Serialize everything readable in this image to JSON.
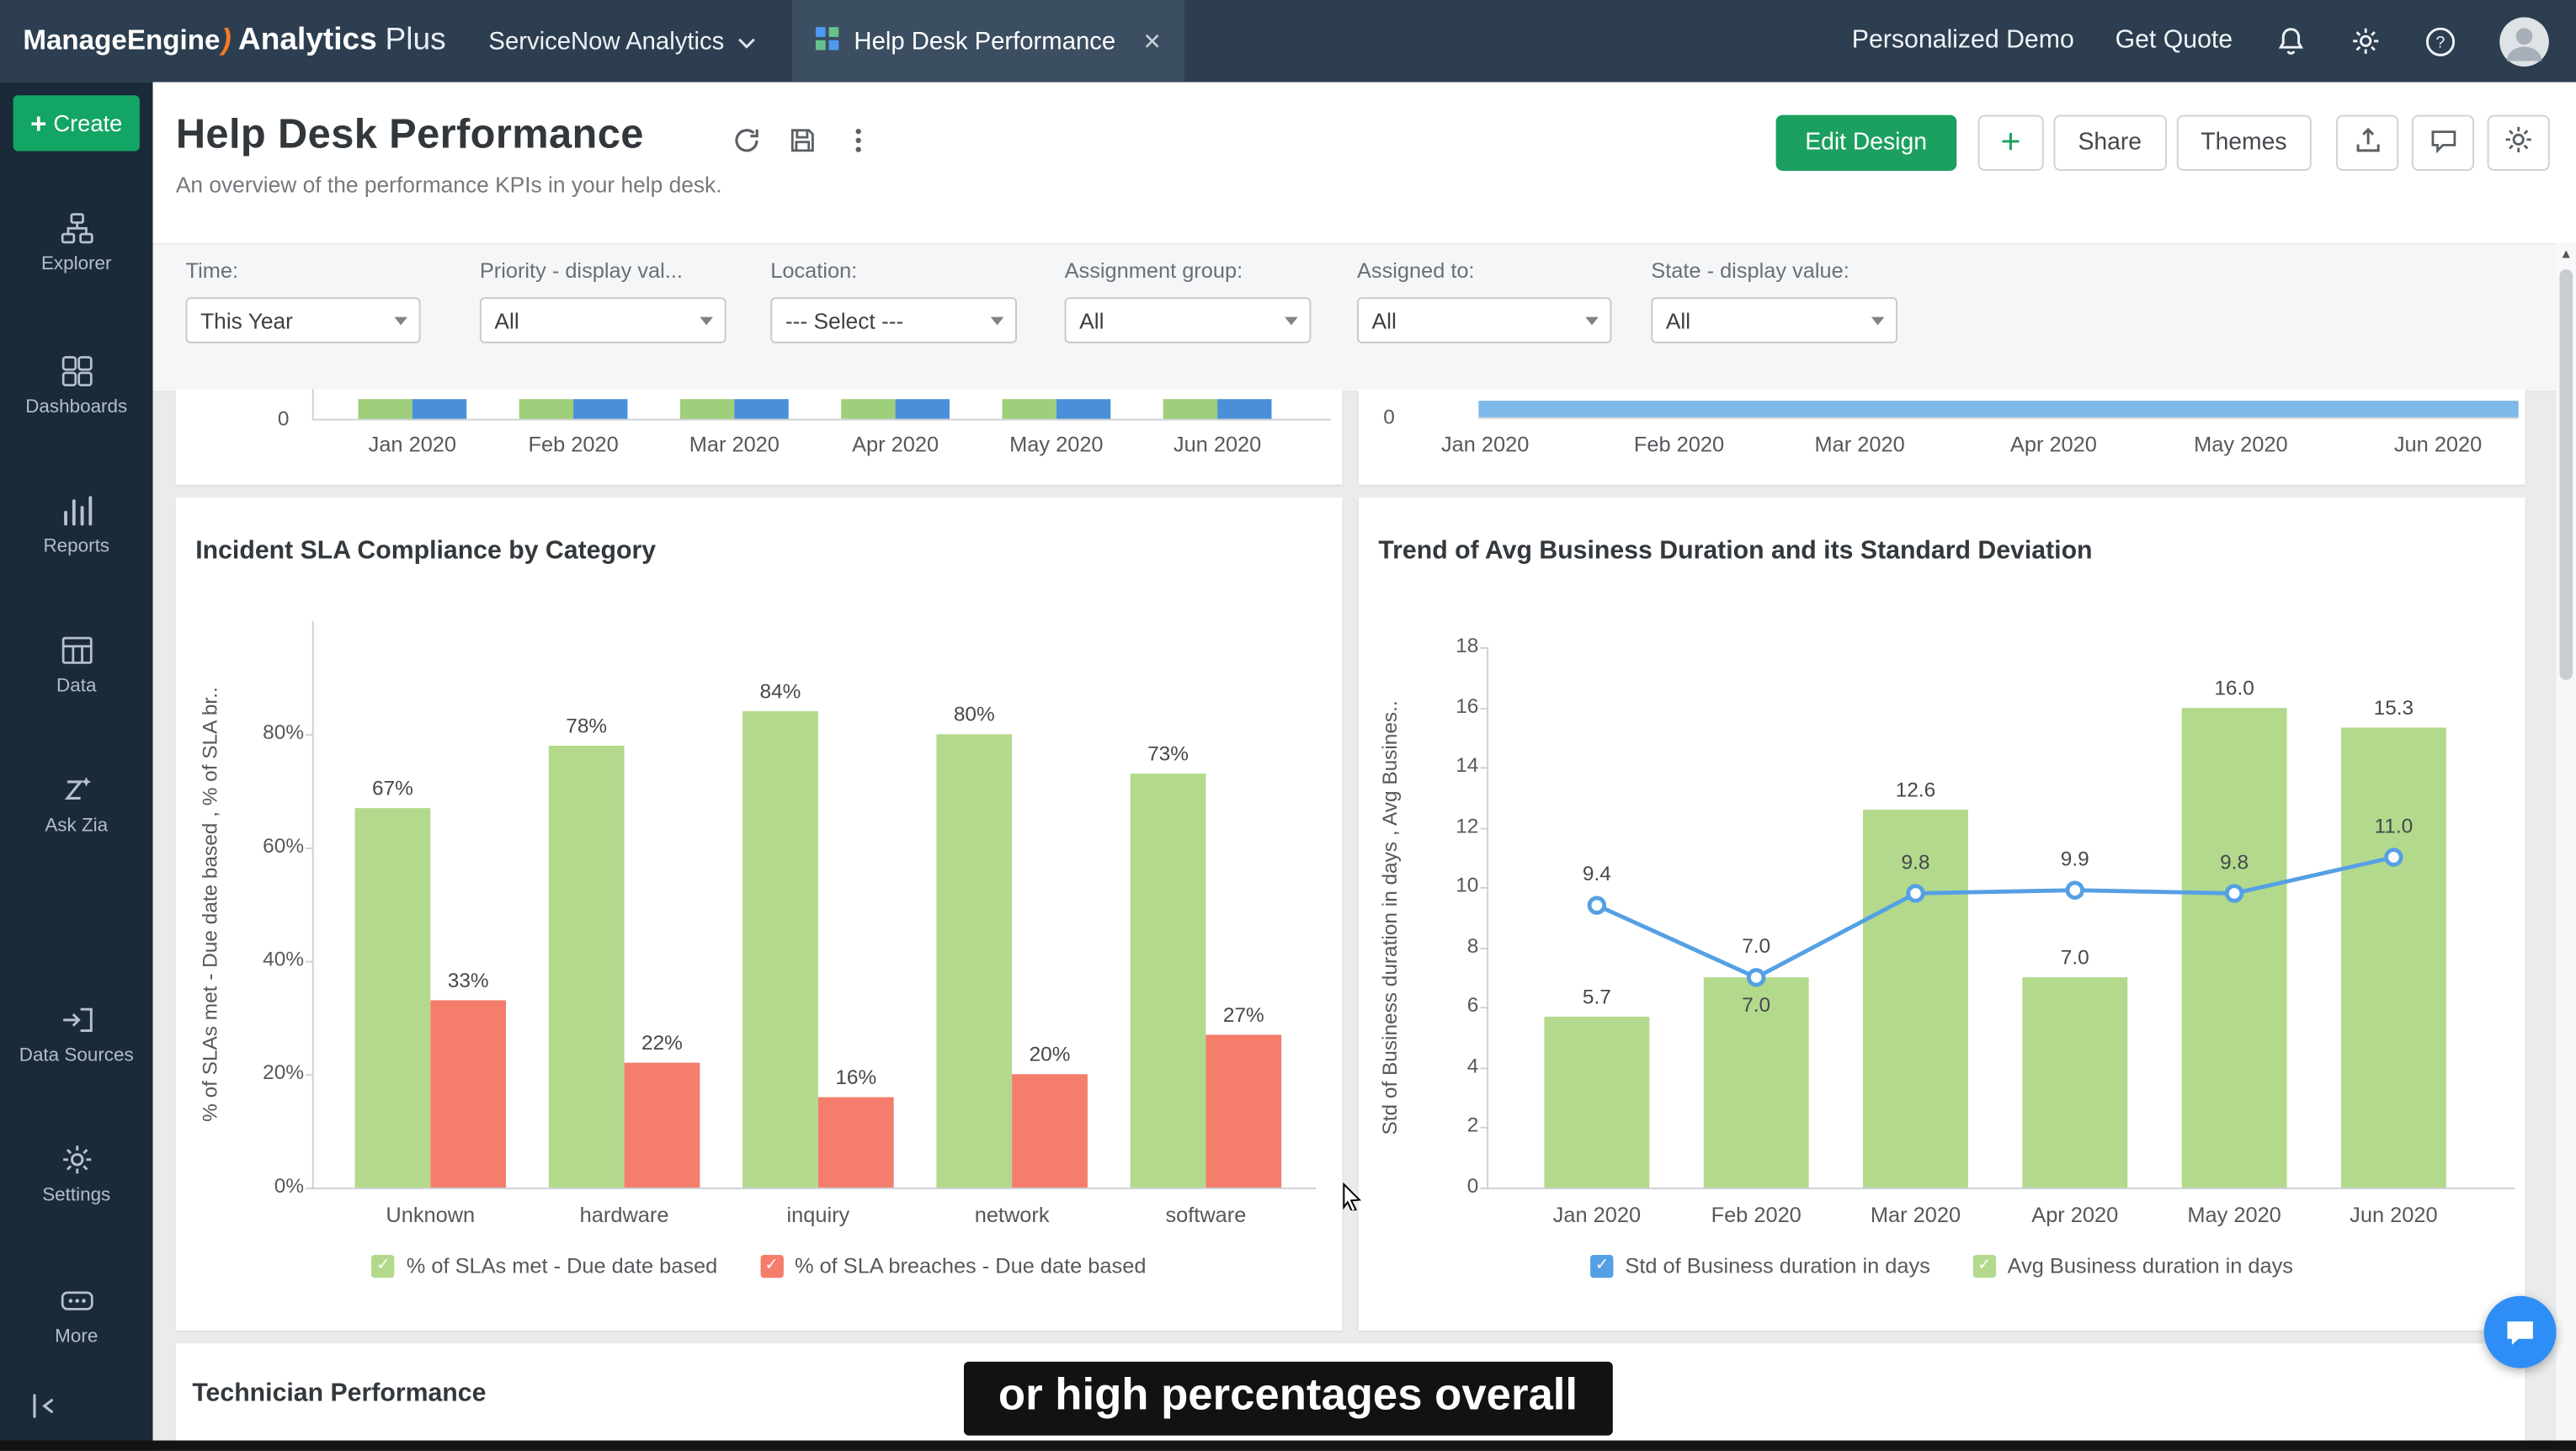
{
  "topbar": {
    "brand_part1": "ManageEngine",
    "brand_part2": "Analytics",
    "brand_part3": "Plus",
    "workspace_label": "ServiceNow Analytics",
    "active_tab": "Help Desk Performance",
    "link_demo": "Personalized Demo",
    "link_quote": "Get Quote"
  },
  "sidebar": {
    "create_label": "Create",
    "items": [
      {
        "name": "explorer",
        "label": "Explorer"
      },
      {
        "name": "dashboards",
        "label": "Dashboards"
      },
      {
        "name": "reports",
        "label": "Reports"
      },
      {
        "name": "data",
        "label": "Data"
      },
      {
        "name": "ask-zia",
        "label": "Ask Zia"
      },
      {
        "name": "data-sources",
        "label": "Data Sources"
      },
      {
        "name": "settings",
        "label": "Settings"
      },
      {
        "name": "more",
        "label": "More"
      }
    ]
  },
  "header": {
    "title": "Help Desk Performance",
    "subtitle": "An overview of the performance KPIs in your help desk.",
    "edit_design": "Edit Design",
    "share": "Share",
    "themes": "Themes"
  },
  "filters": [
    {
      "name": "time",
      "label": "Time:",
      "value": "This Year"
    },
    {
      "name": "priority",
      "label": "Priority - display val...",
      "value": "All"
    },
    {
      "name": "location",
      "label": "Location:",
      "value": "--- Select ---"
    },
    {
      "name": "assignment-group",
      "label": "Assignment group:",
      "value": "All"
    },
    {
      "name": "assigned-to",
      "label": "Assigned to:",
      "value": "All"
    },
    {
      "name": "state",
      "label": "State - display value:",
      "value": "All"
    }
  ],
  "cropped_row": {
    "months": [
      "Jan 2020",
      "Feb 2020",
      "Mar 2020",
      "Apr 2020",
      "May 2020",
      "Jun 2020"
    ],
    "left_zero": "0",
    "right_zero": "0",
    "left_series_colors": [
      "#9fcf7a",
      "#4a90d9"
    ],
    "right_bar_color": "#7db9e9"
  },
  "chart_data": [
    {
      "type": "bar",
      "title": "Incident SLA Compliance by Category",
      "categories": [
        "Unknown",
        "hardware",
        "inquiry",
        "network",
        "software"
      ],
      "series": [
        {
          "name": "% of SLAs met - Due date based",
          "color": "#b3d98c",
          "values": [
            67,
            78,
            84,
            80,
            73
          ]
        },
        {
          "name": "% of SLA breaches - Due date based",
          "color": "#f47d6c",
          "values": [
            33,
            22,
            16,
            20,
            27
          ]
        }
      ],
      "value_suffix": "%",
      "ylabel": "% of SLAs met - Due date based , % of SLA br..",
      "yticks": [
        0,
        20,
        40,
        60,
        80
      ],
      "ylim": [
        0,
        100
      ],
      "legend_position": "bottom",
      "grid": false
    },
    {
      "type": "bar+line",
      "title": "Trend of Avg Business Duration and its Standard Deviation",
      "categories": [
        "Jan 2020",
        "Feb 2020",
        "Mar 2020",
        "Apr 2020",
        "May 2020",
        "Jun 2020"
      ],
      "series": [
        {
          "name": "Std of Business duration in days",
          "type": "line",
          "color": "#55a0e4",
          "values": [
            9.4,
            7.0,
            9.8,
            9.9,
            9.8,
            11.0
          ]
        },
        {
          "name": "Avg Business duration in days",
          "type": "bar",
          "color": "#b3d98c",
          "values": [
            5.7,
            7.0,
            12.6,
            7.0,
            16.0,
            15.3
          ]
        }
      ],
      "ylabel": "Std of Business duration in days , Avg Busines..",
      "yticks": [
        0,
        2,
        4,
        6,
        8,
        10,
        12,
        14,
        16,
        18
      ],
      "ylim": [
        0,
        18
      ],
      "legend_position": "bottom",
      "grid": false
    }
  ],
  "bottom_section": {
    "title": "Technician Performance"
  },
  "caption": "or high percentages overall"
}
